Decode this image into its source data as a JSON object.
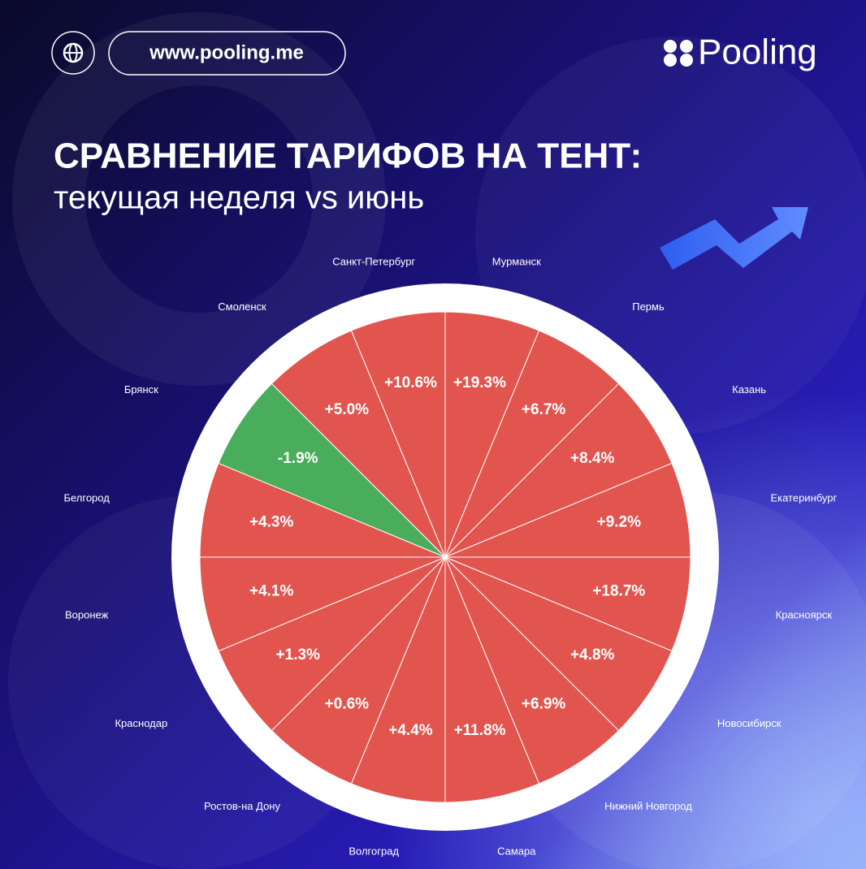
{
  "header": {
    "url": "www.pooling.me",
    "logo": "Pooling"
  },
  "chart_data": {
    "type": "polar",
    "title": "СРАВНЕНИЕ ТАРИФОВ НА ТЕНТ:",
    "subtitle": "текущая неделя vs июнь",
    "categories": [
      "Мурманск",
      "Пермь",
      "Казань",
      "Екатеринбург",
      "Красноярск",
      "Новосибирск",
      "Нижний Новгород",
      "Самара",
      "Волгоград",
      "Ростов-на Дону",
      "Краснодар",
      "Воронеж",
      "Белгород",
      "Брянск",
      "Смоленск",
      "Санкт-Петербург"
    ],
    "values": [
      19.3,
      6.7,
      8.4,
      9.2,
      18.7,
      4.8,
      6.9,
      11.8,
      4.4,
      0.6,
      1.3,
      4.1,
      4.3,
      -1.9,
      5.0,
      10.6
    ],
    "value_labels": [
      "+19.3%",
      "+6.7%",
      "+8.4%",
      "+9.2%",
      "+18.7%",
      "+4.8%",
      "+6.9%",
      "+11.8%",
      "+4.4%",
      "+0.6%",
      "+1.3%",
      "+4.1%",
      "+4.3%",
      "-1.9%",
      "+5.0%",
      "+10.6%"
    ],
    "colors": [
      "#e2554f",
      "#e2554f",
      "#e2554f",
      "#e2554f",
      "#e2554f",
      "#e2554f",
      "#e2554f",
      "#e2554f",
      "#e2554f",
      "#e2554f",
      "#e2554f",
      "#e2554f",
      "#e2554f",
      "#4aad5c",
      "#e2554f",
      "#e2554f"
    ]
  }
}
